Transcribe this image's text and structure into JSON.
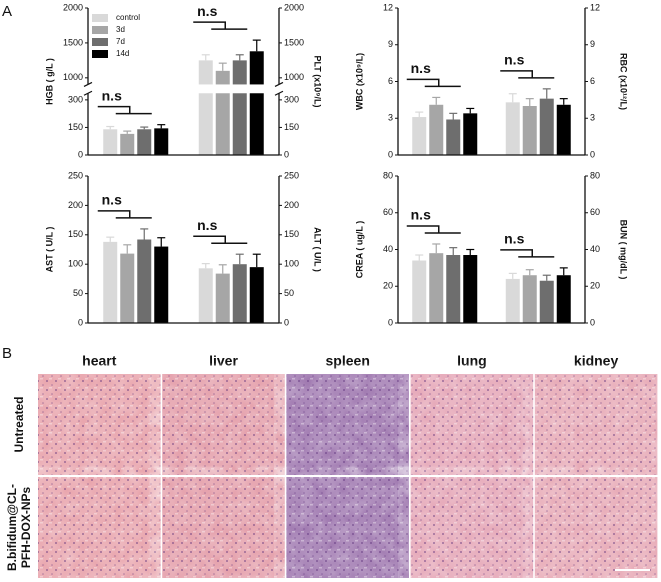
{
  "panel_labels": [
    "A",
    "B"
  ],
  "chart_data": [
    {
      "type": "bar",
      "categories": [
        null,
        null
      ],
      "category_axes": [
        "y",
        "y2"
      ],
      "ylabel": "HGB ( g/L )",
      "y2label": "PLT (x10⁹/L)",
      "ylim": [
        0,
        2000
      ],
      "ybreak": [
        300,
        1000
      ],
      "yticks": [
        0,
        150,
        300,
        1000,
        1500,
        2000
      ],
      "y2lim": [
        0,
        2000
      ],
      "y2break": [
        300,
        1000
      ],
      "y2ticks": [
        0,
        150,
        300,
        1000,
        1500,
        2000
      ],
      "legend": "upper left",
      "annotations": [
        "n.s",
        "n.s"
      ],
      "series": [
        {
          "name": "control",
          "color": "#d9d9d9",
          "values": [
            140,
            1250
          ],
          "errors": [
            15,
            80
          ]
        },
        {
          "name": "3d",
          "color": "#a6a6a6",
          "values": [
            115,
            1100
          ],
          "errors": [
            15,
            110
          ]
        },
        {
          "name": "7d",
          "color": "#6e6e6e",
          "values": [
            140,
            1250
          ],
          "errors": [
            12,
            80
          ]
        },
        {
          "name": "14d",
          "color": "#000000",
          "values": [
            145,
            1380
          ],
          "errors": [
            20,
            160
          ]
        }
      ]
    },
    {
      "type": "bar",
      "categories": [
        null,
        null
      ],
      "category_axes": [
        "y",
        "y2"
      ],
      "ylabel": "WBC (x10⁹/L)",
      "y2label": "RBC (x10¹²/L)",
      "ylim": [
        0,
        12
      ],
      "yticks": [
        0,
        3,
        6,
        9,
        12
      ],
      "y2lim": [
        0,
        12
      ],
      "y2ticks": [
        0,
        3,
        6,
        9,
        12
      ],
      "annotations": [
        "n.s",
        "n.s"
      ],
      "series": [
        {
          "name": "control",
          "color": "#d9d9d9",
          "values": [
            3.1,
            4.3
          ],
          "errors": [
            0.4,
            0.7
          ]
        },
        {
          "name": "3d",
          "color": "#a6a6a6",
          "values": [
            4.1,
            4.0
          ],
          "errors": [
            0.6,
            0.6
          ]
        },
        {
          "name": "7d",
          "color": "#6e6e6e",
          "values": [
            2.9,
            4.6
          ],
          "errors": [
            0.5,
            0.8
          ]
        },
        {
          "name": "14d",
          "color": "#000000",
          "values": [
            3.4,
            4.1
          ],
          "errors": [
            0.4,
            0.5
          ]
        }
      ]
    },
    {
      "type": "bar",
      "categories": [
        null,
        null
      ],
      "category_axes": [
        "y",
        "y2"
      ],
      "ylabel": "AST ( U/L )",
      "y2label": "ALT ( U/L )",
      "ylim": [
        0,
        250
      ],
      "yticks": [
        0,
        50,
        100,
        150,
        200,
        250
      ],
      "y2lim": [
        0,
        250
      ],
      "y2ticks": [
        0,
        50,
        100,
        150,
        200,
        250
      ],
      "annotations": [
        "n.s",
        "n.s"
      ],
      "series": [
        {
          "name": "control",
          "color": "#d9d9d9",
          "values": [
            138,
            93
          ],
          "errors": [
            8,
            8
          ]
        },
        {
          "name": "3d",
          "color": "#a6a6a6",
          "values": [
            118,
            84
          ],
          "errors": [
            15,
            15
          ]
        },
        {
          "name": "7d",
          "color": "#6e6e6e",
          "values": [
            142,
            100
          ],
          "errors": [
            18,
            17
          ]
        },
        {
          "name": "14d",
          "color": "#000000",
          "values": [
            130,
            95
          ],
          "errors": [
            15,
            22
          ]
        }
      ]
    },
    {
      "type": "bar",
      "categories": [
        null,
        null
      ],
      "category_axes": [
        "y",
        "y2"
      ],
      "ylabel": "CREA ( ug/L )",
      "y2label": "BUN ( mg/dL )",
      "ylim": [
        0,
        80
      ],
      "yticks": [
        0,
        20,
        40,
        60,
        80
      ],
      "y2lim": [
        0,
        80
      ],
      "y2ticks": [
        0,
        20,
        40,
        60,
        80
      ],
      "annotations": [
        "n.s",
        "n.s"
      ],
      "series": [
        {
          "name": "control",
          "color": "#d9d9d9",
          "values": [
            34,
            24
          ],
          "errors": [
            3,
            3
          ]
        },
        {
          "name": "3d",
          "color": "#a6a6a6",
          "values": [
            38,
            26
          ],
          "errors": [
            5,
            3
          ]
        },
        {
          "name": "7d",
          "color": "#6e6e6e",
          "values": [
            37,
            23
          ],
          "errors": [
            4,
            3
          ]
        },
        {
          "name": "14d",
          "color": "#000000",
          "values": [
            37,
            26
          ],
          "errors": [
            3,
            4
          ]
        }
      ]
    }
  ],
  "histology": {
    "columns": [
      "heart",
      "liver",
      "spleen",
      "lung",
      "kidney"
    ],
    "rows": [
      [
        "Untreated"
      ],
      [
        "B.bifidum@CL-",
        "PFH-DOX-NPs"
      ]
    ]
  }
}
